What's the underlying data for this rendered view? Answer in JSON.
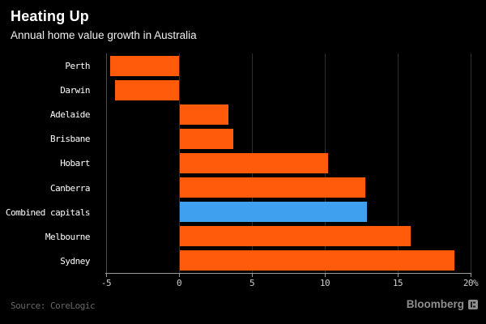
{
  "header": {
    "title": "Heating Up",
    "subtitle": "Annual home value growth in Australia"
  },
  "chart_data": {
    "type": "bar",
    "orientation": "horizontal",
    "title": "Heating Up",
    "subtitle": "Annual home value growth in Australia",
    "categories": [
      "Perth",
      "Darwin",
      "Adelaide",
      "Brisbane",
      "Hobart",
      "Canberra",
      "Combined capitals",
      "Melbourne",
      "Sydney"
    ],
    "values": [
      -4.7,
      -4.4,
      3.4,
      3.7,
      10.2,
      12.8,
      12.9,
      15.9,
      18.9
    ],
    "unit": "%",
    "highlight_category": "Combined capitals",
    "bar_color": "#ff5b0a",
    "highlight_color": "#3fa0ef",
    "xlabel": "",
    "ylabel": "",
    "xlim": [
      -5,
      20
    ],
    "x_ticks": [
      -5,
      0,
      5,
      10,
      15,
      20
    ],
    "x_tick_labels": [
      "-5",
      "0",
      "5",
      "10",
      "15",
      "20%"
    ],
    "grid": "vertical",
    "legend": "none"
  },
  "footer": {
    "source": "Source: CoreLogic",
    "brand": "Bloomberg"
  },
  "colors": {
    "background": "#000000",
    "title_text": "#ffffff",
    "subtitle_text": "#f0f0f0",
    "label_text": "#ffffff",
    "tick_text": "#cfcfcf",
    "axis_line": "#9a9a9a",
    "gridline": "#2e2e2e",
    "source_text": "#686868",
    "brand_text": "#8f8f8f"
  }
}
